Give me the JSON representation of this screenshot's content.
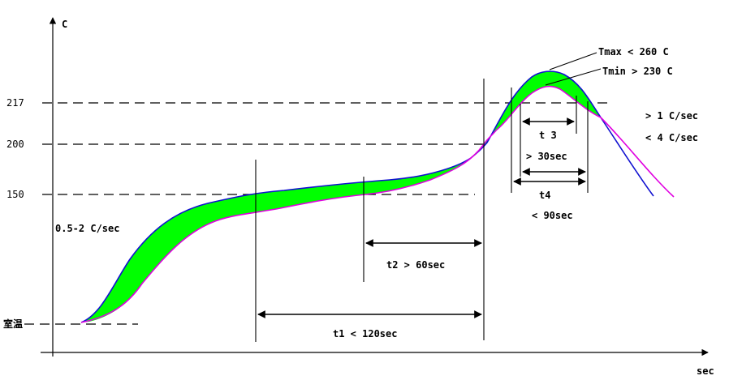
{
  "diagram": {
    "y_unit": "C",
    "x_unit": "sec",
    "y_ticks": [
      "217",
      "200",
      "150"
    ],
    "ambient_label": "室温",
    "ramp_rate_label": "0.5-2 C/sec",
    "tmax_label": "Tmax < 260 C",
    "tmin_label": "Tmin > 230 C",
    "rise_rate_label": "> 1 C/sec",
    "fall_rate_label": "< 4 C/sec",
    "t1_label": "t1 < 120sec",
    "t2_label": "t2 > 60sec",
    "t3_label": "t 3",
    "t3_cond_label": "> 30sec",
    "t4_label": "t4",
    "t4_cond_label": "< 90sec",
    "colors": {
      "upper_curve": "#1010d0",
      "lower_curve": "#e000e0",
      "band_fill": "#00ff00"
    }
  }
}
